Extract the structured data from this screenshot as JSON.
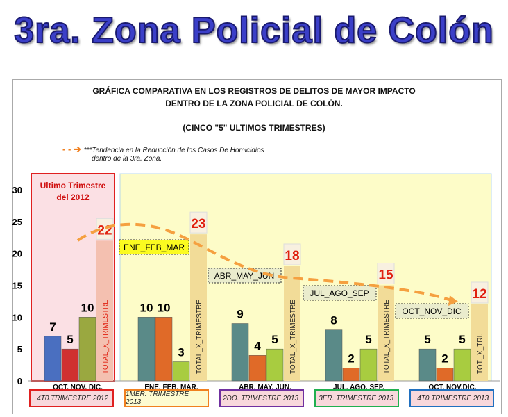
{
  "header": {
    "title": "3ra. Zona Policial de Colón"
  },
  "chart_data": {
    "type": "bar",
    "title_lines": [
      "GRÁFICA COMPARATIVA EN LOS REGISTROS  DE DELITOS DE MAYOR IMPACTO",
      "DENTRO DE LA ZONA POLICIAL DE COLÓN.",
      "(CINCO \"5\"  ULTIMOS TRIMESTRES)"
    ],
    "legend": {
      "line1": "***Tendencia  en la Reducción de los Casos De Homicidios",
      "line2": "dentro de la 3ra. Zona."
    },
    "ylim": [
      0,
      30
    ],
    "yticks": [
      "0",
      "5",
      "10",
      "15",
      "20",
      "25",
      "30"
    ],
    "highlight_label": "Ultimo Trimestre del 2012",
    "groups": [
      {
        "months": "OCT.  NOV.  DIC.",
        "quarter": "4T0.TRIMESTRE 2012",
        "tag": "",
        "values": [
          7,
          5,
          10
        ],
        "total": 22,
        "total_label": "TOTAL_X_TRIMESTRE",
        "border": "#e02020",
        "fill": "#f8d8dc"
      },
      {
        "months": "ENE. FEB.  MAR.",
        "quarter": "1MER. TRIMESTRE 2013",
        "tag": "ENE_FEB_MAR",
        "values": [
          10,
          10,
          3
        ],
        "total": 23,
        "total_label": "TOTAL_X_TRIMESTRE",
        "border": "#f08020",
        "fill": "#fdfbd0"
      },
      {
        "months": "ABR. MAY. JUN.",
        "quarter": "2DO.   TRIMESTRE 2013",
        "tag": "ABR_MAY_JUN",
        "values": [
          9,
          4,
          5
        ],
        "total": 18,
        "total_label": "TOTAL_X_TRIMESTRE",
        "border": "#7030a0",
        "fill": "#f8d8dc"
      },
      {
        "months": "JUL.  AGO. SEP.",
        "quarter": "3ER.   TRIMESTRE 2013",
        "tag": "JUL_AGO_SEP",
        "values": [
          8,
          2,
          5
        ],
        "total": 15,
        "total_label": "TOTAL_X_TRIMESTRE",
        "border": "#20b050",
        "fill": "#f8d8dc"
      },
      {
        "months": "OCT. NOV.DIC.",
        "quarter": "4T0.TRIMESTRE 2013",
        "tag": "OCT_NOV_DIC",
        "values": [
          5,
          2,
          5
        ],
        "total": 12,
        "total_label": "TOT._X_TRI.",
        "border": "#2070c0",
        "fill": "#f8d8dc"
      }
    ],
    "colors": {
      "trend": "#f5a040",
      "total_value": "#e02010"
    }
  }
}
